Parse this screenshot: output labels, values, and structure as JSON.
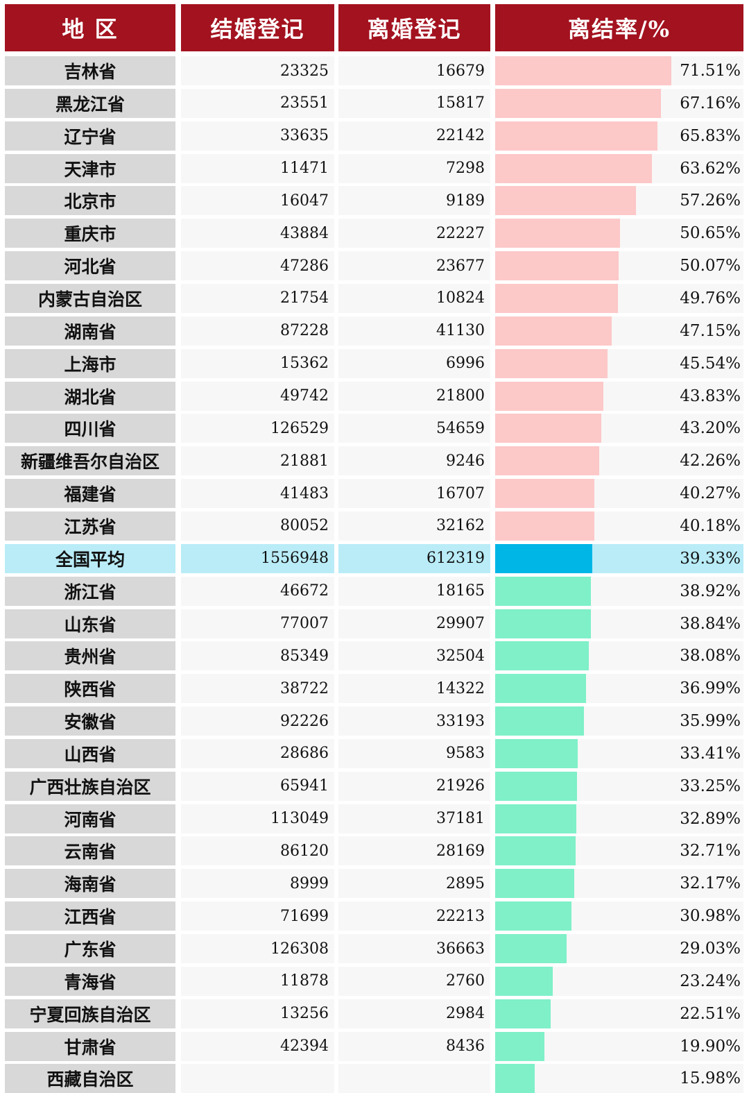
{
  "colors": {
    "header_bg": "#a3121f",
    "above_bar": "#fdc8c8",
    "below_bar": "#7ff0c8",
    "national_bar": "#00b6e6",
    "national_row": "#b9ecf7"
  },
  "header": {
    "region": "地 区",
    "marriages": "结婚登记",
    "divorces": "离婚登记",
    "rate": "离结率/%"
  },
  "chart_data": {
    "type": "table",
    "title": "",
    "columns": [
      "地 区",
      "结婚登记",
      "离婚登记",
      "离结率/%"
    ],
    "rows": [
      {
        "region": "吉林省",
        "marriages": "23325",
        "divorces": "16679",
        "rate": 71.51,
        "rate_label": "71.51%"
      },
      {
        "region": "黑龙江省",
        "marriages": "23551",
        "divorces": "15817",
        "rate": 67.16,
        "rate_label": "67.16%"
      },
      {
        "region": "辽宁省",
        "marriages": "33635",
        "divorces": "22142",
        "rate": 65.83,
        "rate_label": "65.83%"
      },
      {
        "region": "天津市",
        "marriages": "11471",
        "divorces": "7298",
        "rate": 63.62,
        "rate_label": "63.62%"
      },
      {
        "region": "北京市",
        "marriages": "16047",
        "divorces": "9189",
        "rate": 57.26,
        "rate_label": "57.26%"
      },
      {
        "region": "重庆市",
        "marriages": "43884",
        "divorces": "22227",
        "rate": 50.65,
        "rate_label": "50.65%"
      },
      {
        "region": "河北省",
        "marriages": "47286",
        "divorces": "23677",
        "rate": 50.07,
        "rate_label": "50.07%"
      },
      {
        "region": "内蒙古自治区",
        "marriages": "21754",
        "divorces": "10824",
        "rate": 49.76,
        "rate_label": "49.76%"
      },
      {
        "region": "湖南省",
        "marriages": "87228",
        "divorces": "41130",
        "rate": 47.15,
        "rate_label": "47.15%"
      },
      {
        "region": "上海市",
        "marriages": "15362",
        "divorces": "6996",
        "rate": 45.54,
        "rate_label": "45.54%"
      },
      {
        "region": "湖北省",
        "marriages": "49742",
        "divorces": "21800",
        "rate": 43.83,
        "rate_label": "43.83%"
      },
      {
        "region": "四川省",
        "marriages": "126529",
        "divorces": "54659",
        "rate": 43.2,
        "rate_label": "43.20%"
      },
      {
        "region": "新疆维吾尔自治区",
        "marriages": "21881",
        "divorces": "9246",
        "rate": 42.26,
        "rate_label": "42.26%"
      },
      {
        "region": "福建省",
        "marriages": "41483",
        "divorces": "16707",
        "rate": 40.27,
        "rate_label": "40.27%"
      },
      {
        "region": "江苏省",
        "marriages": "80052",
        "divorces": "32162",
        "rate": 40.18,
        "rate_label": "40.18%"
      },
      {
        "region": "全国平均",
        "marriages": "1556948",
        "divorces": "612319",
        "rate": 39.33,
        "rate_label": "39.33%",
        "highlight": true
      },
      {
        "region": "浙江省",
        "marriages": "46672",
        "divorces": "18165",
        "rate": 38.92,
        "rate_label": "38.92%"
      },
      {
        "region": "山东省",
        "marriages": "77007",
        "divorces": "29907",
        "rate": 38.84,
        "rate_label": "38.84%"
      },
      {
        "region": "贵州省",
        "marriages": "85349",
        "divorces": "32504",
        "rate": 38.08,
        "rate_label": "38.08%"
      },
      {
        "region": "陕西省",
        "marriages": "38722",
        "divorces": "14322",
        "rate": 36.99,
        "rate_label": "36.99%"
      },
      {
        "region": "安徽省",
        "marriages": "92226",
        "divorces": "33193",
        "rate": 35.99,
        "rate_label": "35.99%"
      },
      {
        "region": "山西省",
        "marriages": "28686",
        "divorces": "9583",
        "rate": 33.41,
        "rate_label": "33.41%"
      },
      {
        "region": "广西壮族自治区",
        "marriages": "65941",
        "divorces": "21926",
        "rate": 33.25,
        "rate_label": "33.25%"
      },
      {
        "region": "河南省",
        "marriages": "113049",
        "divorces": "37181",
        "rate": 32.89,
        "rate_label": "32.89%"
      },
      {
        "region": "云南省",
        "marriages": "86120",
        "divorces": "28169",
        "rate": 32.71,
        "rate_label": "32.71%"
      },
      {
        "region": "海南省",
        "marriages": "8999",
        "divorces": "2895",
        "rate": 32.17,
        "rate_label": "32.17%"
      },
      {
        "region": "江西省",
        "marriages": "71699",
        "divorces": "22213",
        "rate": 30.98,
        "rate_label": "30.98%"
      },
      {
        "region": "广东省",
        "marriages": "126308",
        "divorces": "36663",
        "rate": 29.03,
        "rate_label": "29.03%"
      },
      {
        "region": "青海省",
        "marriages": "11878",
        "divorces": "2760",
        "rate": 23.24,
        "rate_label": "23.24%"
      },
      {
        "region": "宁夏回族自治区",
        "marriages": "13256",
        "divorces": "2984",
        "rate": 22.51,
        "rate_label": "22.51%"
      },
      {
        "region": "甘肃省",
        "marriages": "42394",
        "divorces": "8436",
        "rate": 19.9,
        "rate_label": "19.90%"
      },
      {
        "region": "西藏自治区",
        "marriages": "",
        "divorces": "",
        "rate": 15.98,
        "rate_label": "15.98%"
      }
    ]
  }
}
